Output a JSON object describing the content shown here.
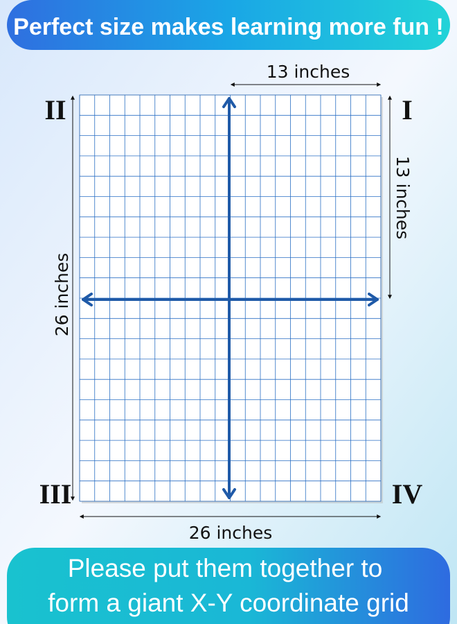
{
  "header": {
    "title": "Perfect size makes learning more fun !"
  },
  "dimensions": {
    "top": "13 inches",
    "right": "13 inches",
    "left": "26 inches",
    "bottom": "26 inches"
  },
  "quadrants": {
    "top_right": "I",
    "top_left": "II",
    "bottom_left": "III",
    "bottom_right": "IV"
  },
  "footer": {
    "lines": [
      "Please put them together to",
      "form a giant X-Y coordinate grid"
    ]
  }
}
